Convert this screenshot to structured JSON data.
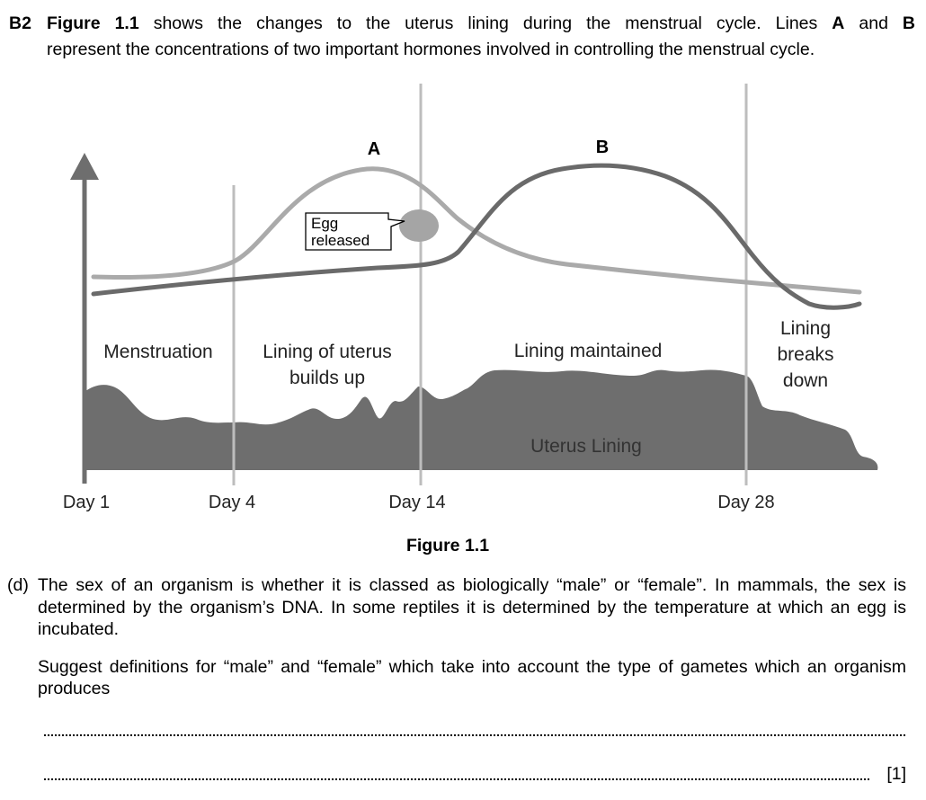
{
  "question": {
    "number": "B2",
    "intro_ref": "Figure 1.1",
    "intro_line1_rest": " shows the changes to the uterus lining during the menstrual cycle.  Lines ",
    "intro_A": "A",
    "intro_and": " and ",
    "intro_B": "B",
    "intro_line2": "represent the concentrations of two important hormones involved in controlling the menstrual cycle."
  },
  "figure": {
    "caption": "Figure 1.1",
    "line_labels": {
      "a": "A",
      "b": "B"
    },
    "callout": {
      "line1": "Egg",
      "line2": "released"
    },
    "phase_labels": {
      "menstruation": "Menstruation",
      "builds_1": "Lining of uterus",
      "builds_2": "builds up",
      "maintained": "Lining maintained",
      "breaks_1": "Lining",
      "breaks_2": "breaks",
      "breaks_3": "down"
    },
    "lining_label": "Uterus Lining",
    "day_labels": {
      "day1": "Day 1",
      "day4": "Day 4",
      "day14": "Day 14",
      "day28": "Day 28"
    },
    "colors": {
      "hormone_a": "#aaaaaa",
      "hormone_b": "#6a6a6a",
      "lining": "#6e6e6e",
      "axis": "#6e6e6e",
      "dividers": "#bdbdbd",
      "egg": "#a5a5a5"
    }
  },
  "part_d": {
    "label": "(d)",
    "para1": "The sex of an organism is whether it is classed as biologically “male” or “female”. In mammals, the sex is determined by the organism’s DNA. In some reptiles it is determined by the temperature at which an egg is incubated.",
    "para2": "Suggest definitions for “male” and “female” which take into account the type of gametes which an organism produces",
    "marks": "[1]"
  }
}
